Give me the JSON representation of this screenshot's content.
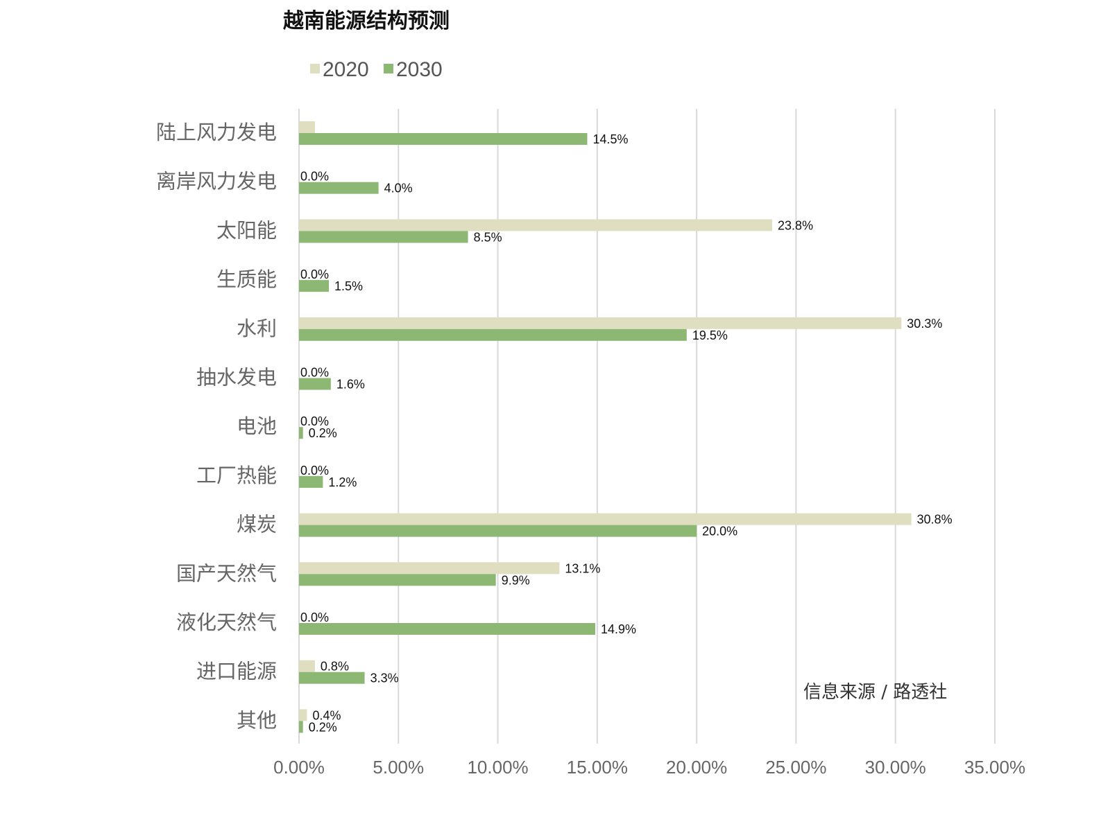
{
  "chart_data": {
    "type": "bar",
    "orientation": "horizontal",
    "title": "越南能源结构预测",
    "categories": [
      "陆上风力发电",
      "离岸风力发电",
      "太阳能",
      "生质能",
      "水利",
      "抽水发电",
      "电池",
      "工厂热能",
      "煤炭",
      "国产天然气",
      "液化天然气",
      "进口能源",
      "其他"
    ],
    "series": [
      {
        "name": "2020",
        "color": "#e0dec0",
        "values": [
          0.8,
          0.0,
          23.8,
          0.0,
          30.3,
          0.0,
          0.0,
          0.0,
          30.8,
          13.1,
          0.0,
          0.8,
          0.4
        ],
        "labels": [
          "",
          "0.0%",
          "23.8%",
          "0.0%",
          "30.3%",
          "0.0%",
          "0.0%",
          "0.0%",
          "30.8%",
          "13.1%",
          "0.0%",
          "0.8%",
          "0.4%"
        ]
      },
      {
        "name": "2030",
        "color": "#8cb873",
        "values": [
          14.5,
          4.0,
          8.5,
          1.5,
          19.5,
          1.6,
          0.2,
          1.2,
          20.0,
          9.9,
          14.9,
          3.3,
          0.2
        ],
        "labels": [
          "14.5%",
          "4.0%",
          "8.5%",
          "1.5%",
          "19.5%",
          "1.6%",
          "0.2%",
          "1.2%",
          "20.0%",
          "9.9%",
          "14.9%",
          "3.3%",
          "0.2%"
        ]
      }
    ],
    "xlim": [
      0,
      35
    ],
    "xticks": [
      0,
      5,
      10,
      15,
      20,
      25,
      30,
      35
    ],
    "xtick_labels": [
      "0.00%",
      "5.00%",
      "10.00%",
      "15.00%",
      "20.00%",
      "25.00%",
      "30.00%",
      "35.00%"
    ],
    "grid": "vertical",
    "legend_position": "top",
    "source_note": "信息来源 / 路透社"
  }
}
